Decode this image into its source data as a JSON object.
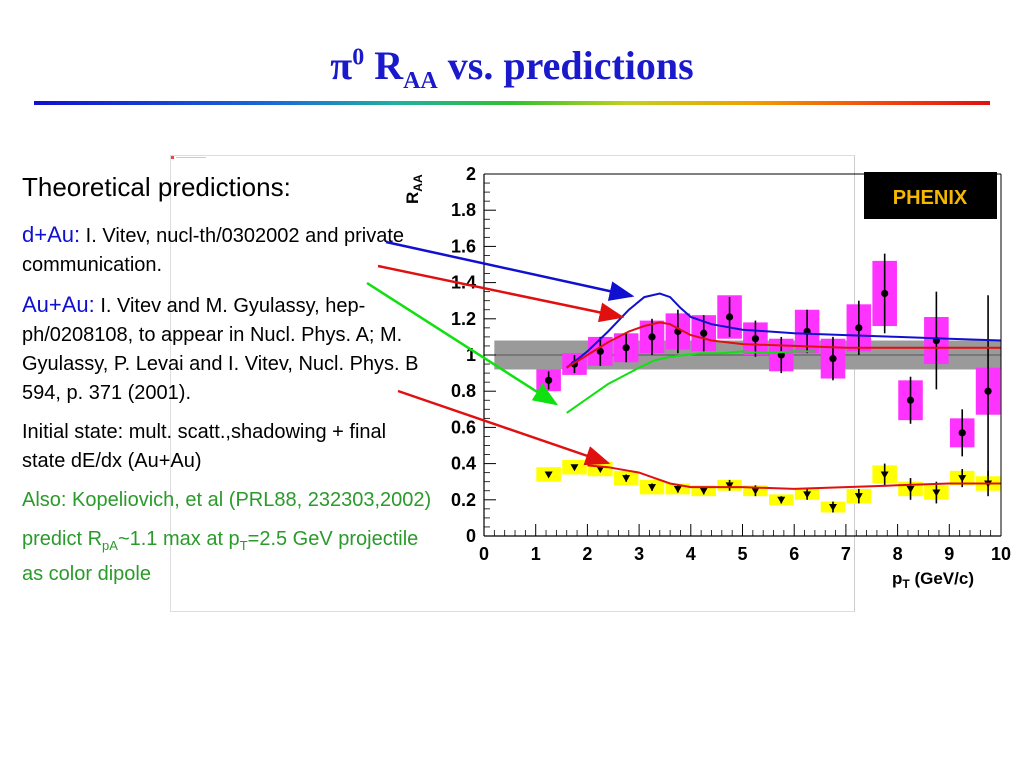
{
  "slide": {
    "title_pi": "π",
    "title_sup": "0",
    "title_r": " R",
    "title_sub": "AA",
    "title_rest": " vs. predictions"
  },
  "text": {
    "heading": "Theoretical predictions:",
    "dau_label": "d+Au:",
    "dau_text": " I. Vitev, nucl-th/0302002 and private communication.",
    "auau_label": "Au+Au:",
    "auau_text": " I. Vitev and M. Gyulassy, hep-ph/0208108, to appear in Nucl. Phys. A; M. Gyulassy, P. Levai and I. Vitev, Nucl. Phys. B 594, p. 371 (2001).",
    "initial_state": "Initial state: mult. scatt.,shadowing + final state dE/dx (Au+Au)",
    "also": "Also: Kopeliovich, et al (PRL88, 232303,2002)",
    "predict_a": "predict R",
    "predict_sub1": "pA",
    "predict_b": "~1.1 max at p",
    "predict_sub2": "T",
    "predict_c": "=2.5 GeV projectile as color dipole"
  },
  "colors": {
    "title": "#1a1acc",
    "dau_curve": "#1010d0",
    "auau_curve": "#e01010",
    "green_curve": "#10e010",
    "magenta_box": "#ff33ff",
    "yellow_box": "#ffff00",
    "band": "#9a9a9a"
  },
  "chart_data": {
    "type": "scatter",
    "xlabel_main": "p",
    "xlabel_sub": "T",
    "xlabel_rest": " (GeV/c)",
    "ylabel_main": "R",
    "ylabel_sub": "AA",
    "xlim": [
      0,
      10
    ],
    "ylim": [
      0,
      2
    ],
    "x_ticks": [
      "0",
      "1",
      "2",
      "3",
      "4",
      "5",
      "6",
      "7",
      "8",
      "9",
      "10"
    ],
    "y_ticks": [
      "0",
      "0.2",
      "0.4",
      "0.6",
      "0.8",
      "1",
      "1.2",
      "1.4",
      "1.6",
      "1.8",
      "2"
    ],
    "logo": "PHENIX",
    "normalization_band": {
      "y": 1.0,
      "half_width": 0.08,
      "x": [
        0.2,
        10
      ]
    },
    "series": [
      {
        "name": "d+Au",
        "marker": "circle",
        "x": [
          1.25,
          1.75,
          2.25,
          2.75,
          3.25,
          3.75,
          4.25,
          4.75,
          5.25,
          5.75,
          6.25,
          6.75,
          7.25,
          7.75,
          8.25,
          8.75,
          9.25,
          9.75
        ],
        "y": [
          0.86,
          0.95,
          1.02,
          1.04,
          1.1,
          1.13,
          1.12,
          1.21,
          1.09,
          1.0,
          1.13,
          0.98,
          1.15,
          1.34,
          0.75,
          1.08,
          0.57,
          0.8
        ],
        "err": [
          0.05,
          0.05,
          0.08,
          0.08,
          0.1,
          0.12,
          0.1,
          0.11,
          0.1,
          0.1,
          0.12,
          0.12,
          0.15,
          0.22,
          0.13,
          0.27,
          0.13,
          0.53
        ],
        "sys": [
          0.06,
          0.06,
          0.08,
          0.08,
          0.09,
          0.1,
          0.1,
          0.12,
          0.09,
          0.09,
          0.12,
          0.11,
          0.13,
          0.18,
          0.11,
          0.13,
          0.08,
          0.13
        ]
      },
      {
        "name": "Au+Au",
        "marker": "triangle-down",
        "x": [
          1.25,
          1.75,
          2.25,
          2.75,
          3.25,
          3.75,
          4.25,
          4.75,
          5.25,
          5.75,
          6.25,
          6.75,
          7.25,
          7.75,
          8.25,
          8.75,
          9.25,
          9.75
        ],
        "y": [
          0.34,
          0.38,
          0.37,
          0.32,
          0.27,
          0.26,
          0.25,
          0.28,
          0.25,
          0.2,
          0.23,
          0.16,
          0.22,
          0.34,
          0.26,
          0.24,
          0.32,
          0.29
        ],
        "err": [
          0.01,
          0.01,
          0.01,
          0.02,
          0.02,
          0.02,
          0.02,
          0.03,
          0.03,
          0.02,
          0.03,
          0.03,
          0.04,
          0.06,
          0.06,
          0.06,
          0.05,
          0.07
        ],
        "sys": [
          0.04,
          0.04,
          0.04,
          0.04,
          0.04,
          0.03,
          0.03,
          0.03,
          0.03,
          0.03,
          0.03,
          0.03,
          0.04,
          0.05,
          0.04,
          0.04,
          0.04,
          0.04
        ]
      }
    ],
    "curves": [
      {
        "name": "d+Au prediction",
        "color": "#1010d0",
        "x": [
          1.6,
          2.0,
          2.4,
          2.8,
          3.1,
          3.4,
          3.6,
          3.8,
          4.0,
          4.4,
          5.0,
          6.0,
          7.0,
          8.0,
          9.0,
          10.0
        ],
        "y": [
          0.93,
          1.02,
          1.13,
          1.25,
          1.32,
          1.34,
          1.32,
          1.26,
          1.21,
          1.17,
          1.14,
          1.12,
          1.11,
          1.1,
          1.09,
          1.08
        ]
      },
      {
        "name": "Au+Au d+Au-like prediction",
        "color": "#e01010",
        "x": [
          1.6,
          2.0,
          2.4,
          2.8,
          3.1,
          3.4,
          3.6,
          3.8,
          4.0,
          4.4,
          5.0,
          6.0,
          7.0,
          8.0,
          9.0,
          10.0
        ],
        "y": [
          0.93,
          1.0,
          1.07,
          1.13,
          1.16,
          1.18,
          1.17,
          1.14,
          1.11,
          1.08,
          1.06,
          1.05,
          1.04,
          1.04,
          1.04,
          1.04
        ]
      },
      {
        "name": "green prediction",
        "color": "#10e010",
        "x": [
          1.6,
          2.0,
          2.4,
          2.8,
          3.0,
          3.3,
          3.6,
          3.9,
          4.2,
          4.6,
          5.0,
          5.4,
          6.0,
          6.4
        ],
        "y": [
          0.68,
          0.76,
          0.84,
          0.9,
          0.93,
          0.97,
          0.99,
          1.0,
          1.01,
          1.01,
          1.02,
          1.01,
          1.02,
          1.02
        ]
      },
      {
        "name": "Au+Au prediction",
        "color": "#e01010",
        "x": [
          2.0,
          2.4,
          2.8,
          3.0,
          3.3,
          3.6,
          4.0,
          4.5,
          5.0,
          6.0,
          7.0,
          8.0,
          9.0,
          10.0
        ],
        "y": [
          0.39,
          0.38,
          0.36,
          0.35,
          0.32,
          0.29,
          0.27,
          0.27,
          0.27,
          0.26,
          0.27,
          0.28,
          0.29,
          0.29
        ]
      }
    ]
  }
}
